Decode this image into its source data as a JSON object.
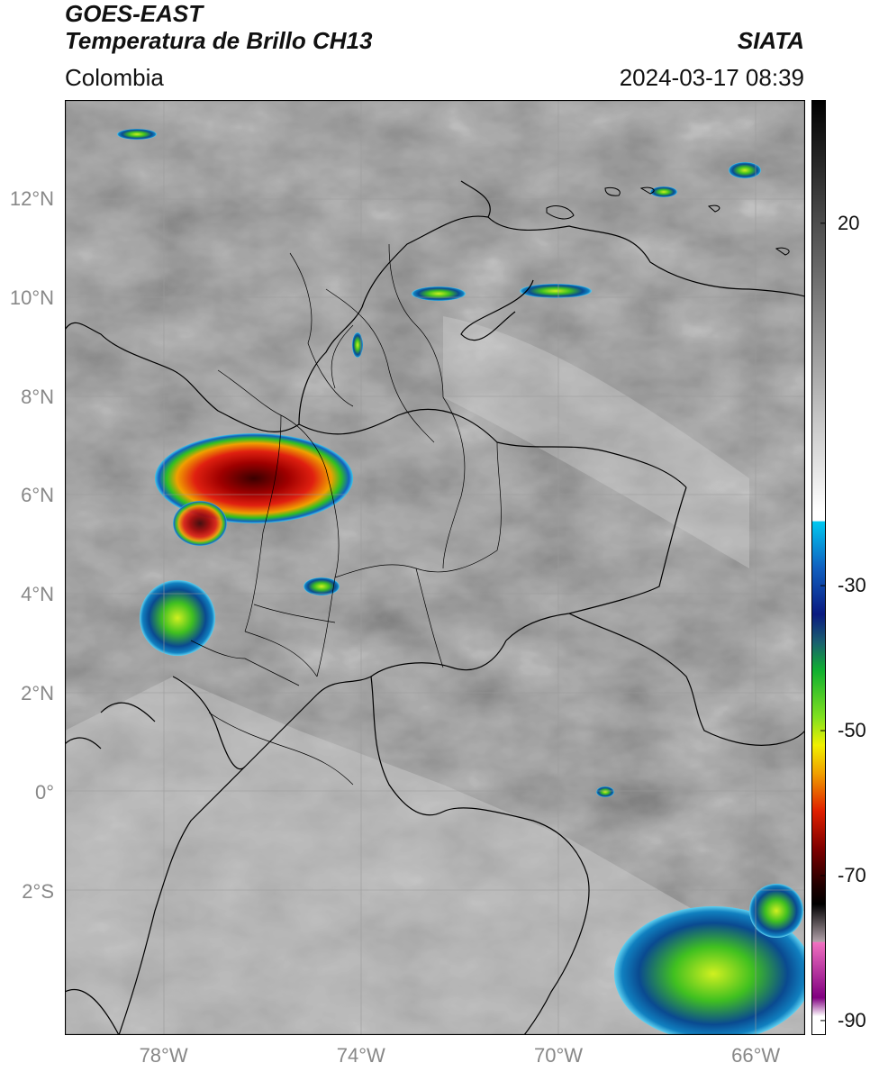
{
  "header": {
    "satellite": "GOES-EAST",
    "product": "Temperatura de Brillo CH13",
    "region": "Colombia",
    "organization": "SIATA",
    "timestamp": "2024-03-17 08:39"
  },
  "axes": {
    "lat_ticks": [
      "12°N",
      "10°N",
      "8°N",
      "6°N",
      "4°N",
      "2°N",
      "0°",
      "2°S"
    ],
    "lon_ticks": [
      "78°W",
      "74°W",
      "70°W",
      "66°W"
    ],
    "lat_values": [
      12,
      10,
      8,
      6,
      4,
      2,
      0,
      -2
    ],
    "lon_values": [
      -78,
      -74,
      -70,
      -66
    ],
    "lat_range": [
      -4.9,
      14.0
    ],
    "lon_range": [
      -80.0,
      -65.0
    ]
  },
  "colorbar": {
    "labels": [
      "20",
      "-30",
      "-50",
      "-70",
      "-90"
    ],
    "values": [
      20,
      -30,
      -50,
      -70,
      -90
    ],
    "range": [
      -92,
      37
    ],
    "units": ""
  },
  "colors": {
    "background": "#ffffff",
    "border_line": "#000000",
    "grid_line": "#9a9a9a"
  }
}
